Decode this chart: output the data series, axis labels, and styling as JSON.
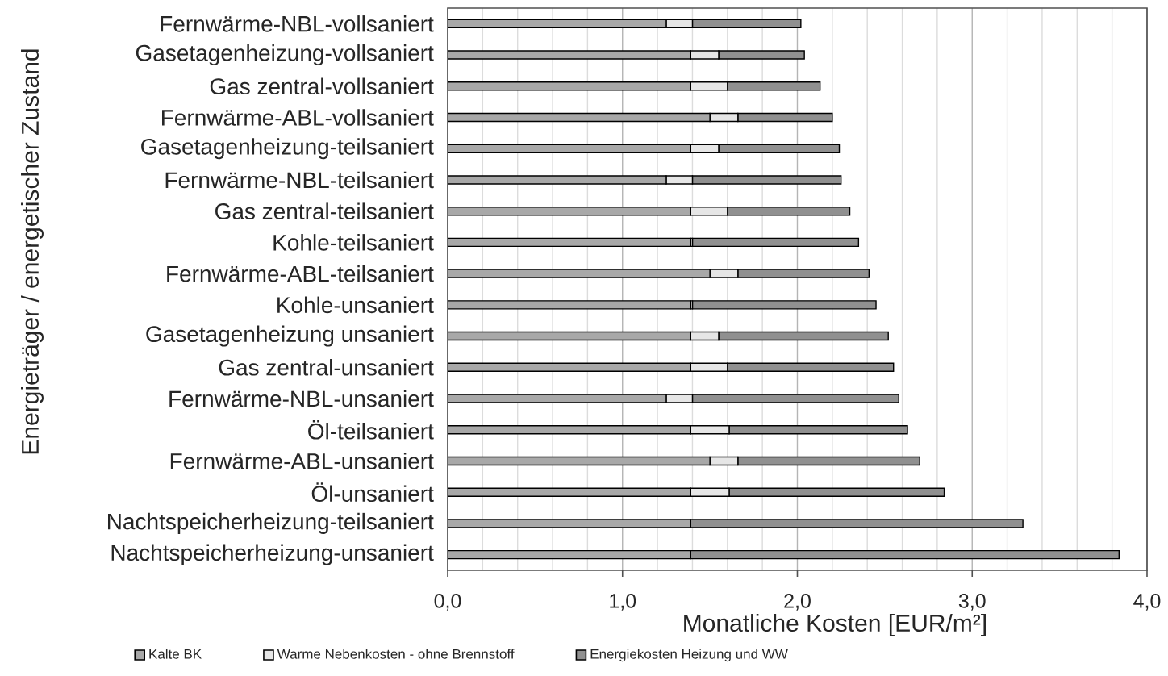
{
  "chart_data": {
    "type": "bar",
    "orientation": "horizontal",
    "stacked": true,
    "categories": [
      "Fernwärme-NBL-vollsaniert",
      "Gasetagenheizung-vollsaniert",
      "Gas zentral-vollsaniert",
      "Fernwärme-ABL-vollsaniert",
      "Gasetagenheizung-teilsaniert",
      "Fernwärme-NBL-teilsaniert",
      "Gas zentral-teilsaniert",
      "Kohle-teilsaniert",
      "Fernwärme-ABL-teilsaniert",
      "Kohle-unsaniert",
      "Gasetagenheizung unsaniert",
      "Gas zentral-unsaniert",
      "Fernwärme-NBL-unsaniert",
      "Öl-teilsaniert",
      "Fernwärme-ABL-unsaniert",
      "Öl-unsaniert",
      "Nachtspeicherheizung-teilsaniert",
      "Nachtspeicherheizung-unsaniert"
    ],
    "series": [
      {
        "name": "Kalte BK",
        "color": "#a8a8a8",
        "values": [
          1.25,
          1.39,
          1.39,
          1.5,
          1.39,
          1.25,
          1.39,
          1.39,
          1.5,
          1.39,
          1.39,
          1.39,
          1.25,
          1.39,
          1.5,
          1.39,
          1.39,
          1.39
        ]
      },
      {
        "name": "Warme Nebenkosten - ohne Brennstoff",
        "color": "#e6e6e6",
        "values": [
          0.15,
          0.16,
          0.21,
          0.16,
          0.16,
          0.15,
          0.21,
          0.01,
          0.16,
          0.01,
          0.16,
          0.21,
          0.15,
          0.22,
          0.16,
          0.22,
          0,
          0
        ]
      },
      {
        "name": "Energiekosten Heizung und WW",
        "color": "#909090",
        "values": [
          0.62,
          0.49,
          0.53,
          0.54,
          0.69,
          0.85,
          0.7,
          0.95,
          0.75,
          1.05,
          0.97,
          0.95,
          1.18,
          1.02,
          1.04,
          1.23,
          1.9,
          2.45
        ]
      }
    ],
    "xlabel": "Monatliche Kosten [EUR/m²]",
    "ylabel": "Energieträger / energetischer Zustand",
    "xlim": [
      0,
      4
    ],
    "xticks": [
      {
        "value": 0,
        "label": "0,0"
      },
      {
        "value": 0.2,
        "label": null
      },
      {
        "value": 0.4,
        "label": null
      },
      {
        "value": 0.6,
        "label": null
      },
      {
        "value": 0.8,
        "label": null
      },
      {
        "value": 1,
        "label": "1,0"
      },
      {
        "value": 1.2,
        "label": null
      },
      {
        "value": 1.4,
        "label": null
      },
      {
        "value": 1.6,
        "label": null
      },
      {
        "value": 1.8,
        "label": null
      },
      {
        "value": 2,
        "label": "2,0"
      },
      {
        "value": 2.2,
        "label": null
      },
      {
        "value": 2.4,
        "label": null
      },
      {
        "value": 2.6,
        "label": null
      },
      {
        "value": 2.8,
        "label": null
      },
      {
        "value": 3,
        "label": "3,0"
      },
      {
        "value": 3.2,
        "label": null
      },
      {
        "value": 3.4,
        "label": null
      },
      {
        "value": 3.6,
        "label": null
      },
      {
        "value": 3.8,
        "label": null
      },
      {
        "value": 4,
        "label": "4,0"
      }
    ],
    "grid": "x",
    "legend": "bottom"
  }
}
